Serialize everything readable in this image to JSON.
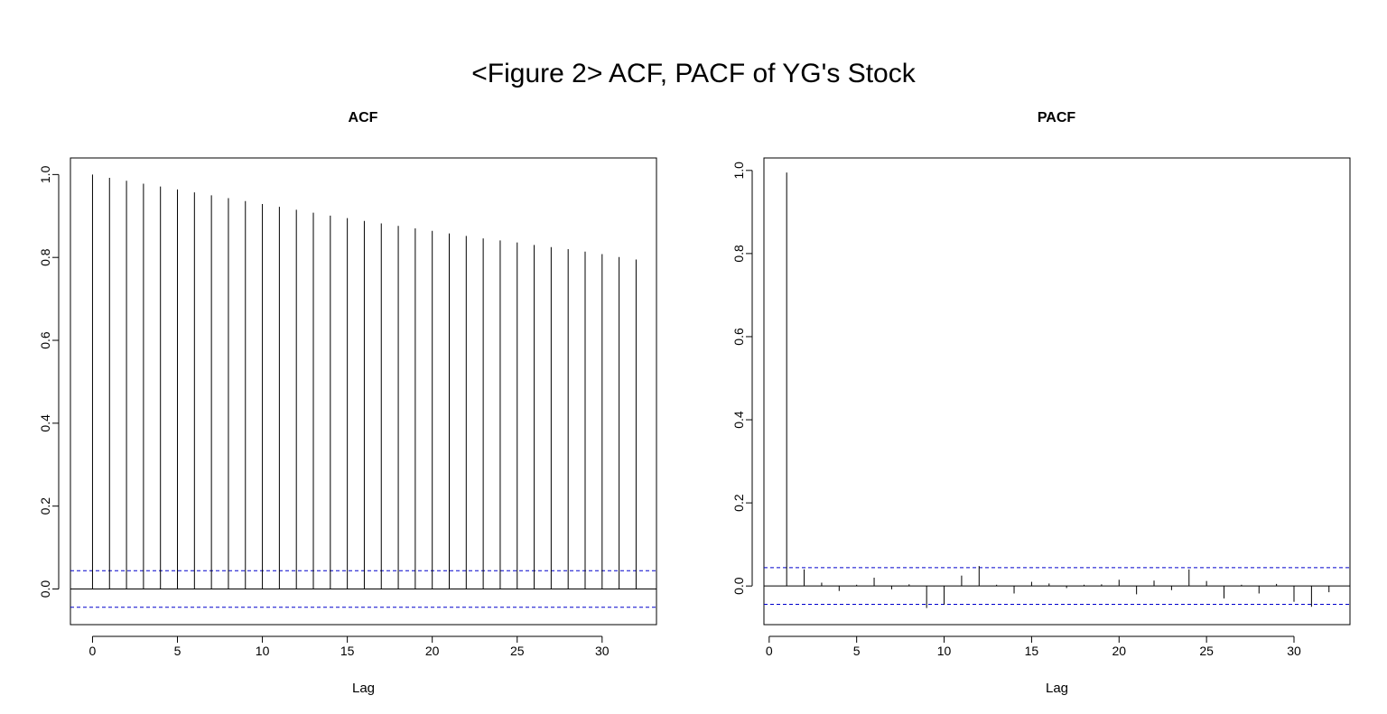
{
  "figure_title": "<Figure 2> ACF, PACF of YG's Stock",
  "chart_data": [
    {
      "type": "bar",
      "title": "ACF",
      "xlabel": "Lag",
      "ylabel": "",
      "xlim": [
        -1.3,
        33.2
      ],
      "ylim": [
        -0.086,
        1.04
      ],
      "xticks": [
        0,
        5,
        10,
        15,
        20,
        25,
        30
      ],
      "yticks": [
        0.0,
        0.2,
        0.4,
        0.6,
        0.8,
        1.0
      ],
      "ytick_labels": [
        "0.0",
        "0.2",
        "0.4",
        "0.6",
        "0.8",
        "1.0"
      ],
      "lags": [
        0,
        1,
        2,
        3,
        4,
        5,
        6,
        7,
        8,
        9,
        10,
        11,
        12,
        13,
        14,
        15,
        16,
        17,
        18,
        19,
        20,
        21,
        22,
        23,
        24,
        25,
        26,
        27,
        28,
        29,
        30,
        31,
        32
      ],
      "values": [
        1.0,
        0.992,
        0.985,
        0.978,
        0.971,
        0.964,
        0.957,
        0.95,
        0.943,
        0.936,
        0.929,
        0.922,
        0.915,
        0.908,
        0.901,
        0.895,
        0.888,
        0.882,
        0.876,
        0.87,
        0.864,
        0.858,
        0.852,
        0.846,
        0.841,
        0.836,
        0.83,
        0.825,
        0.82,
        0.814,
        0.808,
        0.801,
        0.795
      ],
      "conf_bound": 0.044,
      "conf_color": "#0000cc"
    },
    {
      "type": "bar",
      "title": "PACF",
      "xlabel": "Lag",
      "ylabel": "",
      "xlim": [
        -0.3,
        33.2
      ],
      "ylim": [
        -0.093,
        1.03
      ],
      "xticks": [
        0,
        5,
        10,
        15,
        20,
        25,
        30
      ],
      "yticks": [
        0.0,
        0.2,
        0.4,
        0.6,
        0.8,
        1.0
      ],
      "ytick_labels": [
        "0.0",
        "0.2",
        "0.4",
        "0.6",
        "0.8",
        "1.0"
      ],
      "lags": [
        1,
        2,
        3,
        4,
        5,
        6,
        7,
        8,
        9,
        10,
        11,
        12,
        13,
        14,
        15,
        16,
        17,
        18,
        19,
        20,
        21,
        22,
        23,
        24,
        25,
        26,
        27,
        28,
        29,
        30,
        31,
        32
      ],
      "values": [
        0.995,
        0.04,
        0.008,
        -0.012,
        0.003,
        0.02,
        -0.008,
        0.004,
        -0.053,
        -0.045,
        0.025,
        0.048,
        0.003,
        -0.018,
        0.01,
        0.006,
        -0.005,
        0.003,
        0.004,
        0.015,
        -0.02,
        0.013,
        -0.01,
        0.04,
        0.012,
        -0.03,
        0.003,
        -0.018,
        0.005,
        -0.038,
        -0.05,
        -0.015
      ],
      "conf_bound": 0.044,
      "conf_color": "#0000cc"
    }
  ]
}
